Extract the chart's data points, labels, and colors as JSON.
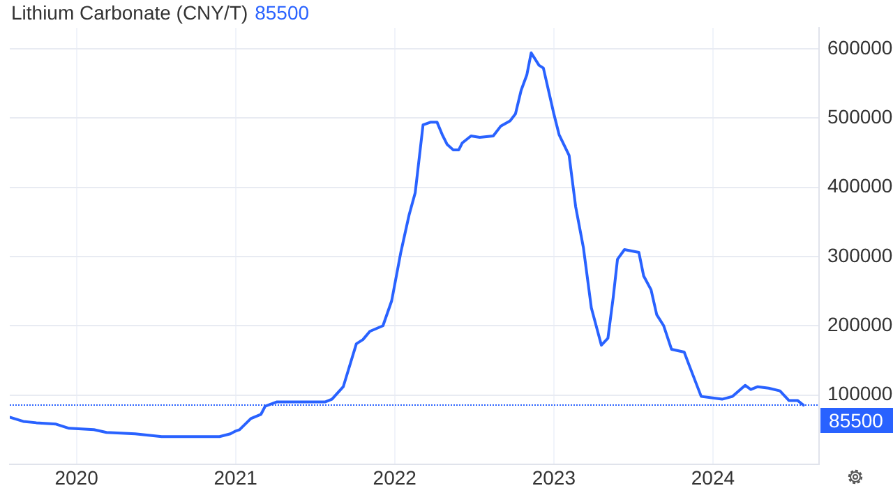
{
  "chart_data": {
    "type": "line",
    "title": "Lithium Carbonate (CNY/T)",
    "annotations": [
      "85500"
    ],
    "x": [
      "2019-08-01",
      "2019-09-01",
      "2019-10-01",
      "2019-11-15",
      "2019-12-15",
      "2020-02-10",
      "2020-03-10",
      "2020-05-15",
      "2020-07-15",
      "2020-11-25",
      "2020-12-20",
      "2021-01-01",
      "2021-01-10",
      "2021-02-05",
      "2021-02-28",
      "2021-03-10",
      "2021-04-05",
      "2021-07-25",
      "2021-08-10",
      "2021-09-05",
      "2021-10-05",
      "2021-10-20",
      "2021-11-05",
      "2021-12-05",
      "2021-12-25",
      "2022-01-15",
      "2022-02-03",
      "2022-02-17",
      "2022-03-07",
      "2022-03-25",
      "2022-04-08",
      "2022-04-20",
      "2022-05-01",
      "2022-05-15",
      "2022-05-28",
      "2022-06-05",
      "2022-06-25",
      "2022-07-15",
      "2022-08-15",
      "2022-09-01",
      "2022-09-23",
      "2022-10-05",
      "2022-10-18",
      "2022-10-31",
      "2022-11-10",
      "2022-11-28",
      "2022-12-08",
      "2023-01-01",
      "2023-01-13",
      "2023-02-05",
      "2023-02-20",
      "2023-03-10",
      "2023-03-28",
      "2023-04-20",
      "2023-05-05",
      "2023-05-17",
      "2023-05-27",
      "2023-06-12",
      "2023-07-15",
      "2023-07-26",
      "2023-08-12",
      "2023-08-25",
      "2023-09-10",
      "2023-09-28",
      "2023-10-27",
      "2023-11-08",
      "2023-12-05",
      "2024-01-22",
      "2024-02-15",
      "2024-03-15",
      "2024-03-28",
      "2024-04-13",
      "2024-05-08",
      "2024-06-03",
      "2024-06-24",
      "2024-07-14",
      "2024-07-27"
    ],
    "series": [
      {
        "color": "#2962ff",
        "values": [
          68000,
          62000,
          60000,
          58000,
          52000,
          50000,
          46000,
          44000,
          40000,
          40000,
          44000,
          48000,
          50000,
          66000,
          72000,
          84000,
          90000,
          90000,
          94000,
          112000,
          174000,
          180000,
          192000,
          200000,
          236000,
          306000,
          360000,
          392000,
          490000,
          494000,
          494000,
          476000,
          462000,
          454000,
          454000,
          464000,
          474000,
          472000,
          474000,
          488000,
          496000,
          506000,
          540000,
          562000,
          594000,
          576000,
          572000,
          506000,
          476000,
          446000,
          372000,
          312000,
          226000,
          172000,
          182000,
          240000,
          296000,
          310000,
          306000,
          272000,
          252000,
          216000,
          200000,
          166000,
          162000,
          142000,
          98000,
          94000,
          98000,
          114000,
          108000,
          112000,
          110000,
          106000,
          92000,
          92000,
          85500
        ]
      }
    ],
    "xlim": [
      "2019-08-01",
      "2024-09-01"
    ],
    "xticks": [
      {
        "value": "2020-01-01",
        "label": "2020"
      },
      {
        "value": "2021-01-01",
        "label": "2021"
      },
      {
        "value": "2022-01-01",
        "label": "2022"
      },
      {
        "value": "2023-01-01",
        "label": "2023"
      },
      {
        "value": "2024-01-01",
        "label": "2024"
      }
    ],
    "ylim": [
      0,
      630000
    ],
    "yticks": [
      {
        "value": 0,
        "label": null
      },
      100000,
      200000,
      300000,
      400000,
      500000,
      600000
    ],
    "ref_lines": [
      {
        "axis": "y",
        "value": 85500,
        "label": "85500",
        "color": "#2962ff"
      }
    ],
    "grid": true,
    "legend": false,
    "marker": "none",
    "line_style": "solid"
  }
}
